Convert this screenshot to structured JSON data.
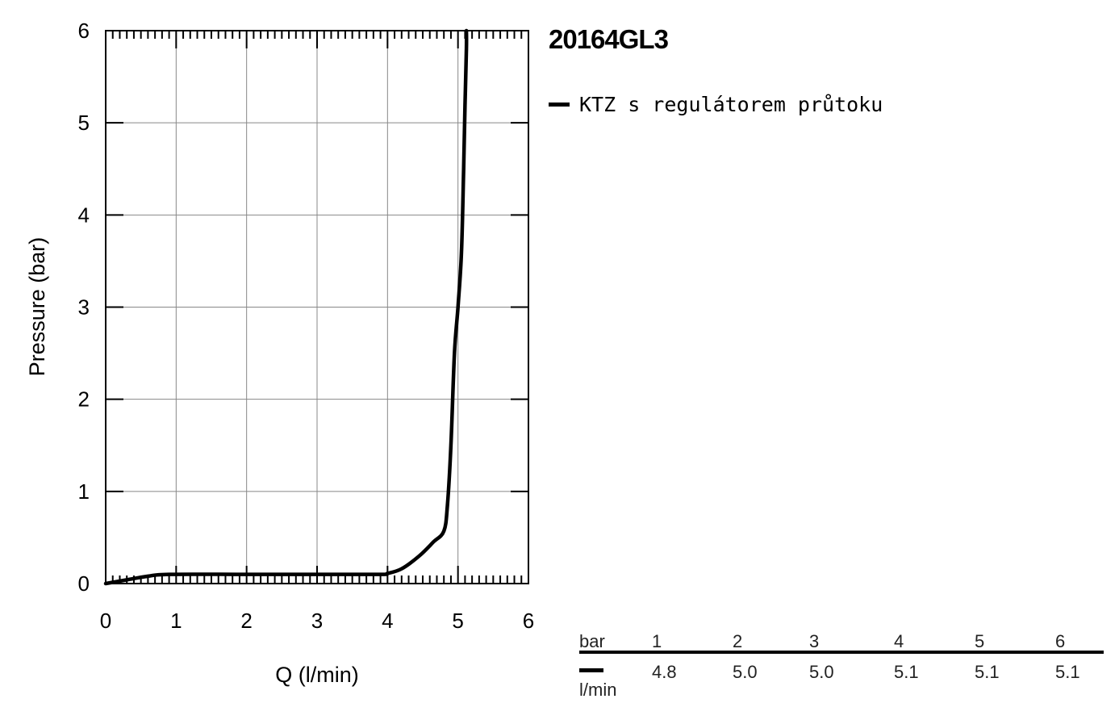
{
  "title": "20164GL3",
  "legend": {
    "label": "KTZ s regulátorem průtoku"
  },
  "chart_data": {
    "type": "line",
    "title": "20164GL3",
    "xlabel": "Q (l/min)",
    "ylabel": "Pressure (bar)",
    "xlim": [
      0,
      6
    ],
    "ylim": [
      0,
      6
    ],
    "xticks": [
      "0",
      "1",
      "2",
      "3",
      "4",
      "5",
      "6"
    ],
    "yticks": [
      "0",
      "1",
      "2",
      "3",
      "4",
      "5",
      "6"
    ],
    "grid": true,
    "legend_position": "right",
    "series": [
      {
        "name": "KTZ s regulátorem průtoku",
        "color": "#000000",
        "x": [
          0,
          0.3,
          0.6,
          0.9,
          2.0,
          3.0,
          3.9,
          4.0,
          4.2,
          4.45,
          4.65,
          4.8,
          4.85,
          4.9,
          4.95,
          5.0,
          5.05,
          5.08,
          5.1,
          5.12,
          5.12
        ],
        "y": [
          0,
          0.04,
          0.08,
          0.1,
          0.1,
          0.1,
          0.1,
          0.11,
          0.16,
          0.3,
          0.45,
          0.57,
          0.85,
          1.5,
          2.5,
          3.0,
          3.6,
          4.5,
          5.2,
          5.8,
          6.0
        ]
      }
    ]
  },
  "flow_table": {
    "pressure_unit": "bar",
    "pressures": [
      "1",
      "2",
      "3",
      "4",
      "5",
      "6"
    ],
    "flow_unit": "l/min",
    "flows": [
      "4.8",
      "5.0",
      "5.0",
      "5.1",
      "5.1",
      "5.1"
    ]
  }
}
